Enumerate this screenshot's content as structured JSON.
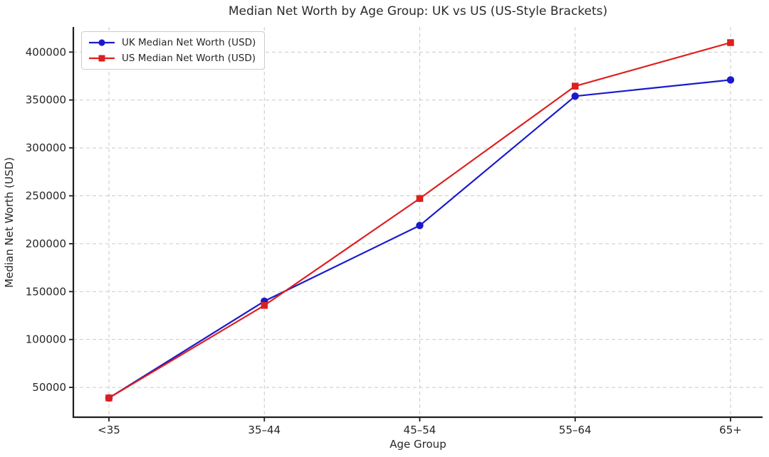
{
  "chart_data": {
    "type": "line",
    "title": "Median Net Worth by Age Group: UK vs US (US-Style Brackets)",
    "xlabel": "Age Group",
    "ylabel": "Median Net Worth (USD)",
    "categories": [
      "<35",
      "35–44",
      "45–54",
      "55–64",
      "65+"
    ],
    "series": [
      {
        "name": "UK Median Net Worth (USD)",
        "values": [
          39000,
          140000,
          219000,
          354000,
          371000
        ],
        "color": "#1a1acc",
        "marker": "circle"
      },
      {
        "name": "US Median Net Worth (USD)",
        "values": [
          39000,
          135600,
          247200,
          364500,
          409900
        ],
        "color": "#dd1f1f",
        "marker": "square"
      }
    ],
    "yticks": [
      50000,
      100000,
      150000,
      200000,
      250000,
      300000,
      350000,
      400000
    ],
    "ylim": [
      18900,
      426200
    ],
    "grid": "dashed",
    "legend_position": "upper-left",
    "colors": {
      "grid": "#c9c9c9",
      "spine": "#1f1f1f",
      "tick_text": "#262626",
      "background": "#ffffff"
    }
  }
}
